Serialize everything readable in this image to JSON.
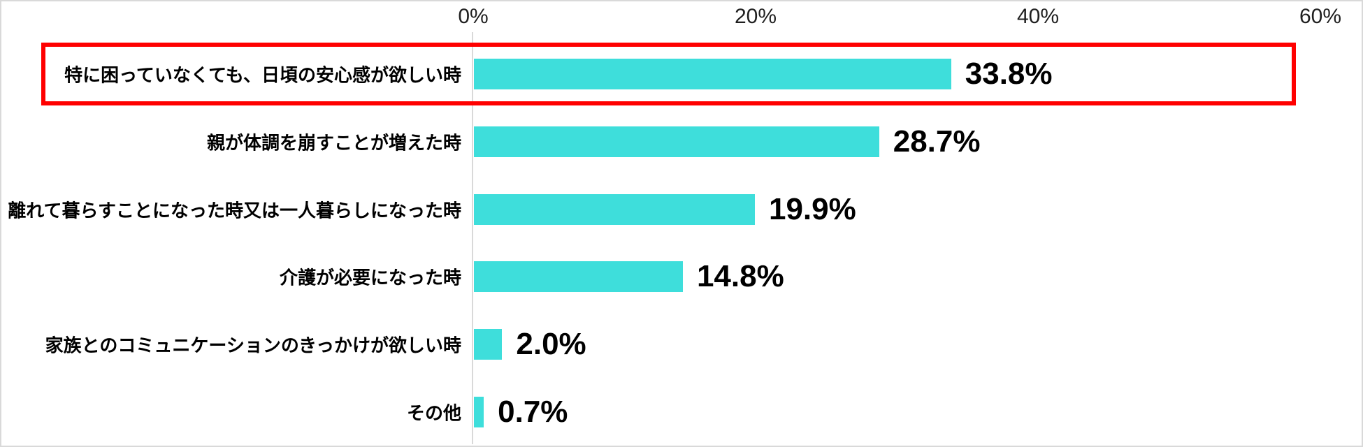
{
  "chart_data": {
    "type": "bar",
    "orientation": "horizontal",
    "title": "",
    "categories": [
      "特に困っていなくても、日頃の安心感が欲しい時",
      "親が体調を崩すことが増えた時",
      "離れて暮らすことになった時又は一人暮らしになった時",
      "介護が必要になった時",
      "家族とのコミュニケーションのきっかけが欲しい時",
      "その他"
    ],
    "values": [
      33.8,
      28.7,
      19.9,
      14.8,
      2.0,
      0.7
    ],
    "value_labels": [
      "33.8%",
      "28.7%",
      "19.9%",
      "14.8%",
      "2.0%",
      "0.7%"
    ],
    "x_axis": {
      "position": "top",
      "min": 0,
      "max": 60,
      "tick_values": [
        0,
        20,
        40,
        60
      ],
      "tick_labels": [
        "0%",
        "20%",
        "40%",
        "60%"
      ]
    },
    "grid": false,
    "legend": false,
    "bar_color": "#3EDEDB",
    "axis_line_color": "#D9D9D9",
    "highlight": {
      "row_index": 0,
      "border_color": "#FF0000",
      "border_width_px": 6
    }
  }
}
